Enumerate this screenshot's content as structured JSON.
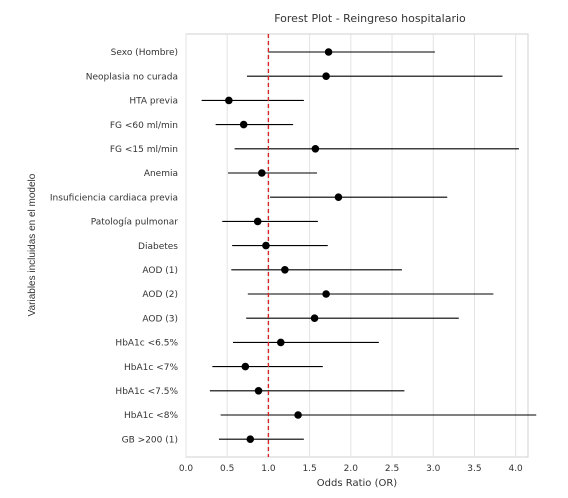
{
  "chart_data": {
    "type": "scatter",
    "subtype": "forest-plot",
    "title": "Forest Plot - Reingreso hospitalario",
    "xlabel": "Odds Ratio (OR)",
    "ylabel": "Variables incluidas en el modelo",
    "xlim": [
      0.0,
      4.15
    ],
    "xticks": [
      "0.0",
      "0.5",
      "1.0",
      "1.5",
      "2.0",
      "2.5",
      "3.0",
      "3.5",
      "4.0"
    ],
    "xtick_values": [
      0.0,
      0.5,
      1.0,
      1.5,
      2.0,
      2.5,
      3.0,
      3.5,
      4.0
    ],
    "grid": true,
    "reference_line": {
      "x": 1.0,
      "style": "dashed",
      "color": "#d62728"
    },
    "point_color": "#000000",
    "ci_color": "#000000",
    "rows": [
      {
        "label": "Sexo (Hombre)",
        "or": 1.73,
        "ci_low": 1.0,
        "ci_high": 3.02
      },
      {
        "label": "Neoplasia no curada",
        "or": 1.7,
        "ci_low": 0.74,
        "ci_high": 3.84
      },
      {
        "label": "HTA previa",
        "or": 0.52,
        "ci_low": 0.19,
        "ci_high": 1.43
      },
      {
        "label": "FG <60 ml/min",
        "or": 0.7,
        "ci_low": 0.36,
        "ci_high": 1.3
      },
      {
        "label": "FG <15 ml/min",
        "or": 1.57,
        "ci_low": 0.59,
        "ci_high": 4.04
      },
      {
        "label": "Anemia",
        "or": 0.92,
        "ci_low": 0.51,
        "ci_high": 1.59
      },
      {
        "label": "Insuficiencia cardiaca previa",
        "or": 1.85,
        "ci_low": 1.02,
        "ci_high": 3.17
      },
      {
        "label": "Patología pulmonar",
        "or": 0.87,
        "ci_low": 0.44,
        "ci_high": 1.6
      },
      {
        "label": "Diabetes",
        "or": 0.97,
        "ci_low": 0.56,
        "ci_high": 1.72
      },
      {
        "label": "AOD (1)",
        "or": 1.2,
        "ci_low": 0.55,
        "ci_high": 2.62
      },
      {
        "label": "AOD (2)",
        "or": 1.7,
        "ci_low": 0.75,
        "ci_high": 3.73
      },
      {
        "label": "AOD (3)",
        "or": 1.56,
        "ci_low": 0.73,
        "ci_high": 3.31
      },
      {
        "label": "HbA1c <6.5%",
        "or": 1.15,
        "ci_low": 0.57,
        "ci_high": 2.34
      },
      {
        "label": "HbA1c <7%",
        "or": 0.72,
        "ci_low": 0.32,
        "ci_high": 1.66
      },
      {
        "label": "HbA1c <7.5%",
        "or": 0.88,
        "ci_low": 0.29,
        "ci_high": 2.65
      },
      {
        "label": "HbA1c <8%",
        "or": 1.36,
        "ci_low": 0.42,
        "ci_high": 4.25
      },
      {
        "label": "GB >200 (1)",
        "or": 0.78,
        "ci_low": 0.4,
        "ci_high": 1.43
      }
    ]
  }
}
